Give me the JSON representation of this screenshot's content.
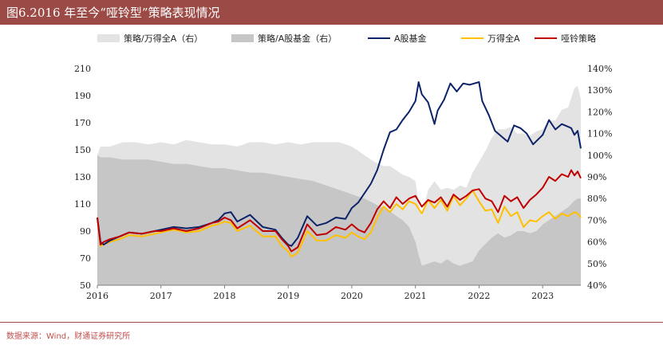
{
  "header": {
    "title": "图6.2016 年至今“哑铃型”策略表现情况"
  },
  "footer": {
    "source": "数据来源：Wind，财通证券研究所"
  },
  "chart_data": {
    "type": "line+area",
    "title": "图6.2016 年至今“哑铃型”策略表现情况",
    "x_labels": [
      "2016",
      "2017",
      "2018",
      "2019",
      "2020",
      "2021",
      "2022",
      "2023"
    ],
    "y_left": {
      "min": 50,
      "max": 210,
      "ticks": [
        50,
        70,
        90,
        110,
        130,
        150,
        170,
        190,
        210
      ]
    },
    "y_right": {
      "min": 40,
      "max": 140,
      "ticks": [
        "40%",
        "50%",
        "60%",
        "70%",
        "80%",
        "90%",
        "100%",
        "110%",
        "120%",
        "130%",
        "140%"
      ],
      "tick_values": [
        40,
        50,
        60,
        70,
        80,
        90,
        100,
        110,
        120,
        130,
        140
      ]
    },
    "colors": {
      "area1": "#e3e3e3",
      "area2": "#c6c6c6",
      "fund": "#0c2369",
      "wind": "#ffc000",
      "dumbbell": "#c00000"
    },
    "legend": [
      {
        "key": "area1",
        "label": "策略/万得全A（右）",
        "kind": "area"
      },
      {
        "key": "area2",
        "label": "策略/A股基金（右）",
        "kind": "area"
      },
      {
        "key": "fund",
        "label": "A股基金",
        "kind": "line"
      },
      {
        "key": "wind",
        "label": "万得全A",
        "kind": "line"
      },
      {
        "key": "dumbbell",
        "label": "哑铃策略",
        "kind": "line"
      }
    ],
    "series": [
      {
        "key": "area1",
        "name": "策略/万得全A（右）",
        "axis": "right",
        "x": [
          2016.0,
          2016.05,
          2016.2,
          2016.4,
          2016.6,
          2016.8,
          2017.0,
          2017.2,
          2017.4,
          2017.6,
          2017.8,
          2018.0,
          2018.2,
          2018.4,
          2018.6,
          2018.8,
          2019.0,
          2019.2,
          2019.4,
          2019.6,
          2019.8,
          2020.0,
          2020.2,
          2020.35,
          2020.5,
          2020.6,
          2020.7,
          2020.8,
          2020.9,
          2021.0,
          2021.05,
          2021.1,
          2021.2,
          2021.3,
          2021.4,
          2021.5,
          2021.6,
          2021.7,
          2021.8,
          2021.9,
          2022.0,
          2022.1,
          2022.2,
          2022.3,
          2022.4,
          2022.5,
          2022.6,
          2022.7,
          2022.8,
          2022.9,
          2023.0,
          2023.1,
          2023.2,
          2023.3,
          2023.4,
          2023.5,
          2023.55,
          2023.6
        ],
        "values": [
          100,
          104,
          104,
          106,
          106,
          105,
          106,
          105,
          107,
          106,
          105,
          105,
          104,
          106,
          106,
          105,
          106,
          105,
          106,
          106,
          106,
          104,
          100,
          97,
          95,
          95,
          93,
          91,
          90,
          88,
          78,
          72,
          84,
          88,
          84,
          85,
          84,
          86,
          85,
          92,
          97,
          102,
          108,
          112,
          112,
          113,
          110,
          110,
          109,
          111,
          112,
          116,
          116,
          121,
          122,
          131,
          132,
          126
        ]
      },
      {
        "key": "area2",
        "name": "策略/A股基金（右）",
        "axis": "right",
        "x": [
          2016.0,
          2016.05,
          2016.2,
          2016.4,
          2016.6,
          2016.8,
          2017.0,
          2017.2,
          2017.4,
          2017.6,
          2017.8,
          2018.0,
          2018.2,
          2018.4,
          2018.6,
          2018.8,
          2019.0,
          2019.2,
          2019.4,
          2019.6,
          2019.8,
          2020.0,
          2020.2,
          2020.4,
          2020.6,
          2020.8,
          2020.9,
          2021.0,
          2021.05,
          2021.1,
          2021.2,
          2021.3,
          2021.4,
          2021.5,
          2021.6,
          2021.7,
          2021.8,
          2021.9,
          2022.0,
          2022.1,
          2022.2,
          2022.3,
          2022.4,
          2022.5,
          2022.6,
          2022.7,
          2022.8,
          2022.9,
          2023.0,
          2023.1,
          2023.2,
          2023.3,
          2023.4,
          2023.5,
          2023.55,
          2023.6
        ],
        "values": [
          100,
          99,
          99,
          98,
          98,
          98,
          97,
          96,
          96,
          95,
          94,
          94,
          93,
          92,
          92,
          91,
          90,
          89,
          88,
          86,
          84,
          82,
          80,
          77,
          74,
          70,
          67,
          60,
          54,
          49,
          50,
          51,
          50,
          52,
          50,
          49,
          50,
          51,
          56,
          59,
          62,
          64,
          62,
          63,
          65,
          65,
          64,
          65,
          68,
          70,
          72,
          74,
          76,
          79,
          80,
          80
        ]
      },
      {
        "key": "fund",
        "name": "A股基金",
        "axis": "left",
        "x": [
          2016.0,
          2016.05,
          2016.1,
          2016.2,
          2016.35,
          2016.5,
          2016.7,
          2016.9,
          2017.0,
          2017.2,
          2017.4,
          2017.6,
          2017.8,
          2017.9,
          2018.0,
          2018.1,
          2018.2,
          2018.4,
          2018.6,
          2018.8,
          2018.9,
          2019.0,
          2019.05,
          2019.15,
          2019.3,
          2019.45,
          2019.6,
          2019.75,
          2019.9,
          2020.0,
          2020.1,
          2020.2,
          2020.3,
          2020.4,
          2020.5,
          2020.6,
          2020.7,
          2020.8,
          2020.9,
          2021.0,
          2021.05,
          2021.1,
          2021.2,
          2021.3,
          2021.35,
          2021.45,
          2021.55,
          2021.65,
          2021.75,
          2021.85,
          2022.0,
          2022.05,
          2022.15,
          2022.25,
          2022.35,
          2022.45,
          2022.55,
          2022.65,
          2022.75,
          2022.85,
          2023.0,
          2023.1,
          2023.2,
          2023.3,
          2023.4,
          2023.45,
          2023.5,
          2023.55,
          2023.6
        ],
        "values": [
          100,
          82,
          80,
          83,
          86,
          89,
          88,
          90,
          91,
          93,
          92,
          93,
          96,
          98,
          103,
          104,
          97,
          102,
          93,
          91,
          85,
          80,
          79,
          85,
          101,
          94,
          96,
          100,
          99,
          107,
          111,
          118,
          125,
          135,
          150,
          163,
          165,
          172,
          178,
          186,
          200,
          191,
          185,
          169,
          179,
          187,
          199,
          193,
          199,
          198,
          200,
          186,
          176,
          164,
          160,
          156,
          168,
          166,
          162,
          154,
          161,
          172,
          165,
          169,
          167,
          166,
          161,
          164,
          151
        ]
      },
      {
        "key": "wind",
        "name": "万得全A",
        "axis": "left",
        "x": [
          2016.0,
          2016.05,
          2016.1,
          2016.2,
          2016.35,
          2016.5,
          2016.7,
          2016.9,
          2017.0,
          2017.2,
          2017.4,
          2017.6,
          2017.8,
          2017.9,
          2018.0,
          2018.1,
          2018.2,
          2018.4,
          2018.6,
          2018.8,
          2018.9,
          2019.0,
          2019.05,
          2019.15,
          2019.3,
          2019.45,
          2019.6,
          2019.75,
          2019.9,
          2020.0,
          2020.1,
          2020.2,
          2020.3,
          2020.4,
          2020.5,
          2020.6,
          2020.7,
          2020.8,
          2020.9,
          2021.0,
          2021.1,
          2021.2,
          2021.3,
          2021.4,
          2021.5,
          2021.6,
          2021.7,
          2021.8,
          2021.9,
          2022.0,
          2022.1,
          2022.2,
          2022.3,
          2022.4,
          2022.5,
          2022.6,
          2022.7,
          2022.8,
          2022.9,
          2023.0,
          2023.1,
          2023.2,
          2023.3,
          2023.4,
          2023.5,
          2023.55,
          2023.6
        ],
        "values": [
          100,
          79,
          80,
          82,
          84,
          87,
          86,
          88,
          89,
          91,
          89,
          90,
          94,
          95,
          97,
          96,
          90,
          94,
          86,
          86,
          79,
          75,
          71,
          74,
          90,
          83,
          83,
          87,
          85,
          89,
          86,
          84,
          89,
          100,
          108,
          104,
          110,
          106,
          112,
          110,
          103,
          113,
          107,
          113,
          105,
          116,
          109,
          114,
          120,
          112,
          105,
          106,
          96,
          108,
          101,
          104,
          93,
          98,
          97,
          101,
          104,
          99,
          103,
          101,
          104,
          103,
          100
        ]
      },
      {
        "key": "dumbbell",
        "name": "哑铃策略",
        "axis": "left",
        "x": [
          2016.0,
          2016.05,
          2016.1,
          2016.2,
          2016.35,
          2016.5,
          2016.7,
          2016.9,
          2017.0,
          2017.2,
          2017.4,
          2017.6,
          2017.8,
          2017.9,
          2018.0,
          2018.1,
          2018.2,
          2018.4,
          2018.6,
          2018.8,
          2018.9,
          2019.0,
          2019.05,
          2019.15,
          2019.3,
          2019.45,
          2019.6,
          2019.75,
          2019.9,
          2020.0,
          2020.1,
          2020.2,
          2020.3,
          2020.4,
          2020.5,
          2020.6,
          2020.7,
          2020.8,
          2020.9,
          2021.0,
          2021.1,
          2021.2,
          2021.3,
          2021.4,
          2021.5,
          2021.6,
          2021.7,
          2021.8,
          2021.9,
          2022.0,
          2022.1,
          2022.2,
          2022.3,
          2022.4,
          2022.5,
          2022.6,
          2022.7,
          2022.8,
          2022.9,
          2023.0,
          2023.1,
          2023.2,
          2023.3,
          2023.4,
          2023.45,
          2023.5,
          2023.55,
          2023.6
        ],
        "values": [
          100,
          80,
          82,
          84,
          86,
          89,
          88,
          90,
          90,
          92,
          90,
          92,
          96,
          97,
          100,
          98,
          92,
          98,
          90,
          90,
          84,
          79,
          75,
          78,
          95,
          87,
          88,
          93,
          91,
          95,
          91,
          89,
          96,
          106,
          112,
          107,
          115,
          110,
          114,
          116,
          108,
          113,
          111,
          115,
          108,
          117,
          113,
          116,
          120,
          121,
          114,
          112,
          104,
          116,
          112,
          115,
          107,
          113,
          117,
          122,
          130,
          127,
          132,
          130,
          135,
          131,
          134,
          129
        ]
      }
    ]
  }
}
